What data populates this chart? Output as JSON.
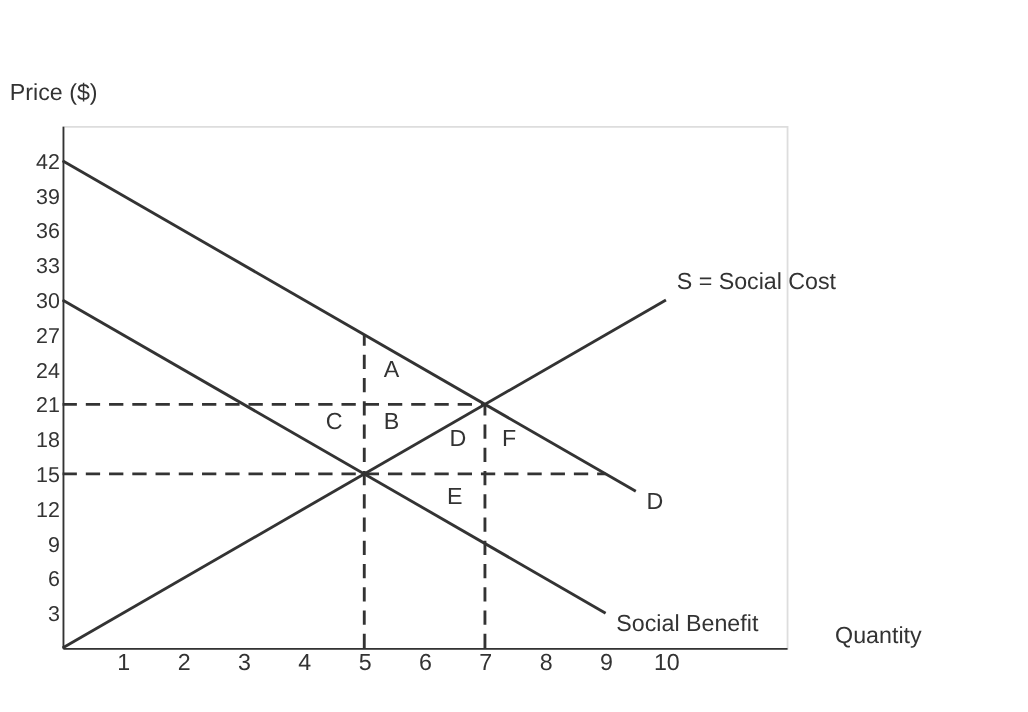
{
  "chart_data": {
    "type": "line",
    "xlabel": "Quantity",
    "ylabel": "Price ($)",
    "xlim": [
      0,
      12
    ],
    "ylim": [
      0,
      45
    ],
    "xticks": [
      1,
      2,
      3,
      4,
      5,
      6,
      7,
      8,
      9,
      10
    ],
    "yticks": [
      3,
      6,
      9,
      12,
      15,
      18,
      21,
      24,
      27,
      30,
      33,
      36,
      39,
      42
    ],
    "grid": false,
    "marker": "none",
    "series": [
      {
        "name": "S = Social Cost",
        "color": "#333333",
        "x": [
          0,
          10
        ],
        "values": [
          0,
          30
        ],
        "line_style": "solid"
      },
      {
        "name": "D",
        "color": "#333333",
        "x": [
          0,
          9.5
        ],
        "values": [
          42,
          13.5
        ],
        "line_style": "solid"
      },
      {
        "name": "Social Benefit",
        "color": "#333333",
        "x": [
          0,
          9
        ],
        "values": [
          30,
          3
        ],
        "line_style": "solid"
      },
      {
        "color": "#333333",
        "x": [
          0,
          7
        ],
        "values": [
          21,
          21
        ],
        "line_style": "dashed"
      },
      {
        "color": "#333333",
        "x": [
          0,
          9
        ],
        "values": [
          15,
          15
        ],
        "line_style": "dashed"
      },
      {
        "color": "#333333",
        "x": [
          5,
          5
        ],
        "values": [
          0,
          27
        ],
        "line_style": "dashed"
      },
      {
        "color": "#333333",
        "x": [
          7,
          7
        ],
        "values": [
          0,
          21
        ],
        "line_style": "dashed"
      }
    ],
    "annotations": [
      "A",
      "B",
      "C",
      "D",
      "F",
      "E"
    ]
  }
}
